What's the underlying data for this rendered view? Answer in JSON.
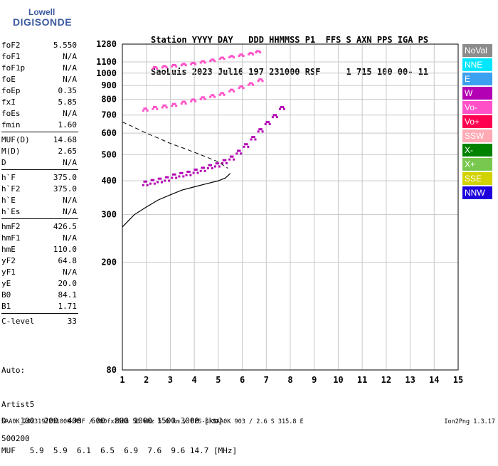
{
  "logo": {
    "line1": "Lowell",
    "line2": "DIGISONDE"
  },
  "header": {
    "line1": "Station YYYY DAY   DDD HHMMSS P1  FFS S AXN PPS IGA PS",
    "line2": "SaoLuis 2023 Jul16 197 231000 RSF     1 715 100 00- 11"
  },
  "params": [
    {
      "group": [
        {
          "name": "foF2",
          "value": "5.550"
        },
        {
          "name": "foF1",
          "value": "N/A"
        },
        {
          "name": "foF1p",
          "value": "N/A"
        },
        {
          "name": "foE",
          "value": "N/A"
        },
        {
          "name": "foEp",
          "value": "0.35"
        },
        {
          "name": "fxI",
          "value": "5.85"
        },
        {
          "name": "foEs",
          "value": "N/A"
        },
        {
          "name": "fmin",
          "value": "1.60"
        }
      ]
    },
    {
      "group": [
        {
          "name": "MUF(D)",
          "value": "14.68"
        },
        {
          "name": "M(D)",
          "value": "2.65"
        },
        {
          "name": "D",
          "value": "N/A"
        }
      ]
    },
    {
      "group": [
        {
          "name": "h`F",
          "value": "375.0"
        },
        {
          "name": "h`F2",
          "value": "375.0"
        },
        {
          "name": "h`E",
          "value": "N/A"
        },
        {
          "name": "h`Es",
          "value": "N/A"
        }
      ]
    },
    {
      "group": [
        {
          "name": "hmF2",
          "value": "426.5"
        },
        {
          "name": "hmF1",
          "value": "N/A"
        },
        {
          "name": "hmE",
          "value": "110.0"
        },
        {
          "name": "yF2",
          "value": "64.8"
        },
        {
          "name": "yF1",
          "value": "N/A"
        },
        {
          "name": "yE",
          "value": "20.0"
        },
        {
          "name": "B0",
          "value": "84.1"
        },
        {
          "name": "B1",
          "value": "1.71"
        }
      ]
    },
    {
      "group": [
        {
          "name": "C-level",
          "value": "33"
        }
      ]
    }
  ],
  "auto": {
    "line1": "Auto:",
    "line2": "Artist5",
    "line3": "500200"
  },
  "legend": [
    {
      "label": "NoVal",
      "color": "#8c8c8c"
    },
    {
      "label": "NNE",
      "color": "#00e6ff"
    },
    {
      "label": "E",
      "color": "#3ca0f0"
    },
    {
      "label": "W",
      "color": "#b400b4"
    },
    {
      "label": "Vo-",
      "color": "#ff50c8"
    },
    {
      "label": "Vo+",
      "color": "#ff0050"
    },
    {
      "label": "SSW",
      "color": "#ffaab4"
    },
    {
      "label": "X-",
      "color": "#008200"
    },
    {
      "label": "X+",
      "color": "#78c850"
    },
    {
      "label": "SSE",
      "color": "#d2d200"
    },
    {
      "label": "NNW",
      "color": "#1e00dc"
    }
  ],
  "chart_data": {
    "type": "scatter",
    "xlim": [
      1,
      15
    ],
    "ylim": [
      80,
      1280
    ],
    "x_ticks": [
      1,
      2,
      3,
      4,
      5,
      6,
      7,
      8,
      9,
      10,
      11,
      12,
      13,
      14,
      15
    ],
    "y_ticks": [
      80,
      200,
      300,
      400,
      500,
      600,
      700,
      800,
      900,
      1000,
      1100,
      1280
    ],
    "grid": true,
    "series": [
      {
        "name": "O-trace",
        "color": "#b400b4",
        "x": [
          1.9,
          2.2,
          2.5,
          2.8,
          3.1,
          3.4,
          3.7,
          4.0,
          4.3,
          4.6,
          4.9,
          5.2,
          5.5,
          5.8,
          6.1,
          6.4,
          6.7,
          7.0,
          7.3,
          7.6
        ],
        "y": [
          395,
          400,
          405,
          410,
          420,
          425,
          430,
          438,
          445,
          455,
          462,
          475,
          490,
          515,
          545,
          580,
          620,
          660,
          700,
          750
        ]
      },
      {
        "name": "2F echo",
        "color": "#ff50c8",
        "x": [
          1.9,
          2.3,
          2.7,
          3.1,
          3.5,
          3.9,
          4.3,
          4.7,
          5.1,
          5.5,
          5.9,
          6.3,
          6.7
        ],
        "y": [
          740,
          750,
          760,
          770,
          785,
          800,
          815,
          830,
          845,
          870,
          895,
          920,
          950
        ]
      },
      {
        "name": "3F echo",
        "color": "#ff50c8",
        "x": [
          2.3,
          2.7,
          3.1,
          3.5,
          3.9,
          4.3,
          4.7,
          5.1,
          5.5,
          5.9,
          6.3,
          6.6
        ],
        "y": [
          1055,
          1065,
          1075,
          1085,
          1095,
          1110,
          1125,
          1145,
          1160,
          1175,
          1190,
          1210
        ]
      }
    ],
    "model_profile": {
      "x": [
        1,
        1.5,
        2,
        2.5,
        3,
        3.5,
        4,
        4.5,
        5,
        5.3,
        5.5
      ],
      "y": [
        270,
        300,
        320,
        340,
        355,
        370,
        380,
        390,
        400,
        410,
        426
      ]
    },
    "dashed_curve": {
      "x": [
        1,
        1.5,
        2,
        2.5,
        3,
        3.5,
        4,
        4.5,
        5,
        5.4
      ],
      "y": [
        660,
        630,
        600,
        575,
        550,
        530,
        510,
        490,
        470,
        445
      ]
    }
  },
  "footer": {
    "d_label": "D",
    "d_values": "100  200  400  600  800 1000 1500 3000 [km]",
    "muf_label": "MUF",
    "muf_values": "5.9  5.9  6.1  6.5  6.9  7.6  9.6 14.7 [MHz]",
    "bottom": "SAA0K_2023197231000.RSF / 280fx256h 50 kHz 5.0 km / DPS-4 SAA0K 903 / 2.6 S 315.8 E",
    "version": "Ion2Png 1.3.17"
  }
}
